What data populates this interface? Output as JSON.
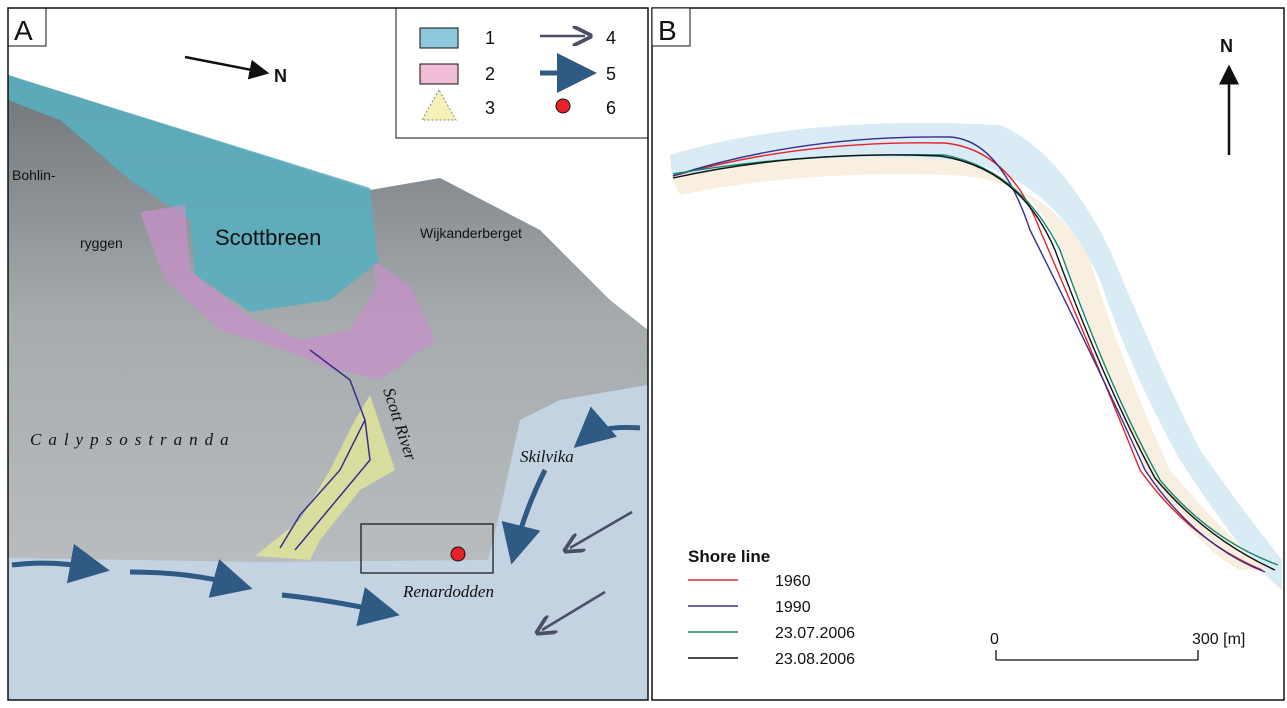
{
  "panels": [
    {
      "label": "A",
      "north": "N",
      "legend": [
        "1",
        "2",
        "3",
        "4",
        "5",
        "6"
      ],
      "places": {
        "bohlin": "Bohlin-",
        "ryggen": "ryggen",
        "glacier": "Scottbreen",
        "mountain": "Wijkanderberget",
        "plain": "Calypsostranda",
        "river": "Scott River",
        "bay": "Skilvika",
        "point": "Renardodden"
      }
    },
    {
      "label": "B",
      "north": "N",
      "legend_title": "Shore line",
      "shorelines": [
        {
          "name": "1960",
          "color": "#e8202a"
        },
        {
          "name": "1990",
          "color": "#3a2e8c"
        },
        {
          "name": "23.07.2006",
          "color": "#10886a"
        },
        {
          "name": "23.08.2006",
          "color": "#111111"
        }
      ],
      "scale": {
        "start": "0",
        "end": "300 [m]"
      }
    }
  ]
}
